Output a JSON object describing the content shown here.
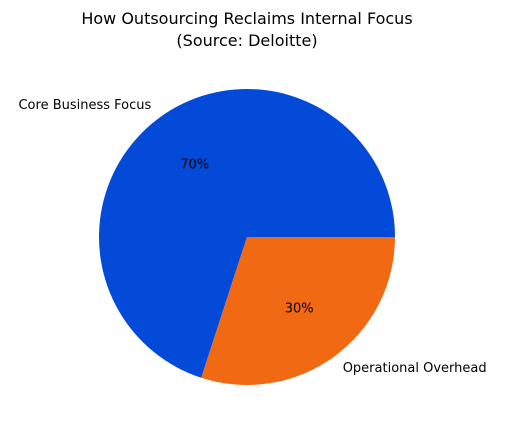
{
  "chart_data": {
    "type": "pie",
    "title_line1": "How Outsourcing Reclaims Internal Focus",
    "title_line2": "(Source: Deloitte)",
    "slices": [
      {
        "label": "Core Business Focus",
        "value": 70,
        "pct_label": "70%",
        "color": "#034ad8"
      },
      {
        "label": "Operational Overhead",
        "value": 30,
        "pct_label": "30%",
        "color": "#f16913"
      }
    ],
    "start_angle_deg": 0,
    "direction": "counterclockwise"
  }
}
